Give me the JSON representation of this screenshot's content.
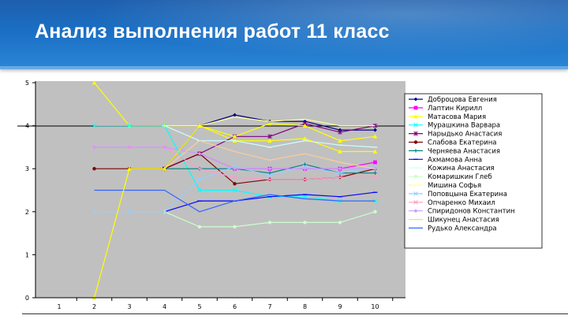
{
  "header": {
    "title": "Анализ выполнения работ 11 класс"
  },
  "colors": {
    "header": "#1a6fc4",
    "plot_bg": "#c0c0c0",
    "title_text": "#ffffff"
  },
  "chart_data": {
    "type": "line",
    "categories": [
      "1",
      "2",
      "3",
      "4",
      "5",
      "6",
      "7",
      "8",
      "9",
      "10"
    ],
    "ylim": [
      0,
      5
    ],
    "yticks": [
      "0",
      "1",
      "2",
      "3",
      "4",
      "5"
    ],
    "grid": "horizontal line at 4 only",
    "legend_position": "right",
    "series": [
      {
        "name": "Доброцова Евгения",
        "color": "#000080",
        "marker": "diamond",
        "values": [
          null,
          null,
          null,
          3,
          4,
          4.25,
          4.1,
          4.1,
          3.9,
          3.9
        ]
      },
      {
        "name": "Лаптин Кирилл",
        "color": "#ff00ff",
        "marker": "square",
        "values": [
          null,
          null,
          null,
          3,
          3.35,
          3.0,
          3.0,
          3.0,
          3.0,
          3.15
        ]
      },
      {
        "name": "Матасова Мария",
        "color": "#ffff00",
        "marker": "triangle",
        "values": [
          null,
          5,
          4,
          4,
          4,
          3.65,
          3.65,
          3.7,
          3.4,
          3.4
        ]
      },
      {
        "name": "Мурашкина Варвара",
        "color": "#00ffff",
        "marker": "x",
        "values": [
          null,
          4,
          4,
          4,
          2.5,
          2.5,
          2.35,
          2.35,
          2.25,
          2.25
        ]
      },
      {
        "name": "Нарыдько Анастасия",
        "color": "#800080",
        "marker": "star",
        "values": [
          null,
          null,
          null,
          3,
          3.35,
          3.75,
          3.75,
          4.05,
          3.85,
          4.0
        ]
      },
      {
        "name": "Слабова Екатерина",
        "color": "#800000",
        "marker": "circle",
        "values": [
          null,
          3,
          3,
          3,
          3.35,
          2.65,
          2.75,
          2.75,
          2.8,
          3.0
        ]
      },
      {
        "name": "Черняева Анастасия",
        "color": "#008080",
        "marker": "plus",
        "values": [
          null,
          null,
          null,
          3,
          3.0,
          3.0,
          2.9,
          3.1,
          2.9,
          2.9
        ]
      },
      {
        "name": "Ахмамова Анна",
        "color": "#0000ff",
        "marker": "dash",
        "values": [
          null,
          null,
          null,
          2,
          2.25,
          2.25,
          2.35,
          2.4,
          2.35,
          2.45
        ]
      },
      {
        "name": "Кожина Анастасия",
        "color": "#ccffff",
        "marker": "dash",
        "values": [
          null,
          null,
          null,
          4,
          3.65,
          3.65,
          3.5,
          3.65,
          3.55,
          3.5
        ]
      },
      {
        "name": "Комаришкин Глеб",
        "color": "#ccffcc",
        "marker": "circle",
        "values": [
          null,
          null,
          null,
          2,
          1.65,
          1.65,
          1.75,
          1.75,
          1.75,
          2.0
        ]
      },
      {
        "name": "Мишина Софья",
        "color": "#ffff99",
        "marker": "none",
        "values": [
          null,
          null,
          null,
          4,
          4.0,
          4.2,
          4.1,
          4.15,
          4.0,
          4.0
        ]
      },
      {
        "name": "Поповцына Екатерина",
        "color": "#99ccff",
        "marker": "x",
        "values": [
          null,
          2,
          2,
          2,
          2.75,
          3.05,
          2.85,
          3.05,
          2.9,
          3.05
        ]
      },
      {
        "name": "Опчаренко Михаил",
        "color": "#ff99cc",
        "marker": "x",
        "values": [
          null,
          3.5,
          3.5,
          3.5,
          3.0,
          2.8,
          2.75,
          2.75,
          2.8,
          2.8
        ]
      },
      {
        "name": "Спиридонов Константин",
        "color": "#cc99ff",
        "marker": "diamond",
        "values": [
          null,
          3.5,
          3.5,
          3.5,
          3.35,
          3.0,
          3.0,
          3.0,
          3.0,
          3.0
        ]
      },
      {
        "name": "Шикунец Анастасия",
        "color": "#ffcc99",
        "marker": "none",
        "values": [
          null,
          null,
          null,
          3,
          3.65,
          3.4,
          3.2,
          3.35,
          3.15,
          3.0
        ]
      },
      {
        "name": "Рудько Александра",
        "color": "#3366ff",
        "marker": "none",
        "values": [
          null,
          2.5,
          2.5,
          2.5,
          2.0,
          2.25,
          2.4,
          2.3,
          2.25,
          2.25
        ]
      },
      {
        "name": "",
        "color": "#ffff00",
        "marker": "triangle",
        "values": [
          null,
          0,
          3,
          3,
          4,
          3.75,
          4.05,
          4.0,
          3.65,
          3.75
        ]
      }
    ]
  }
}
